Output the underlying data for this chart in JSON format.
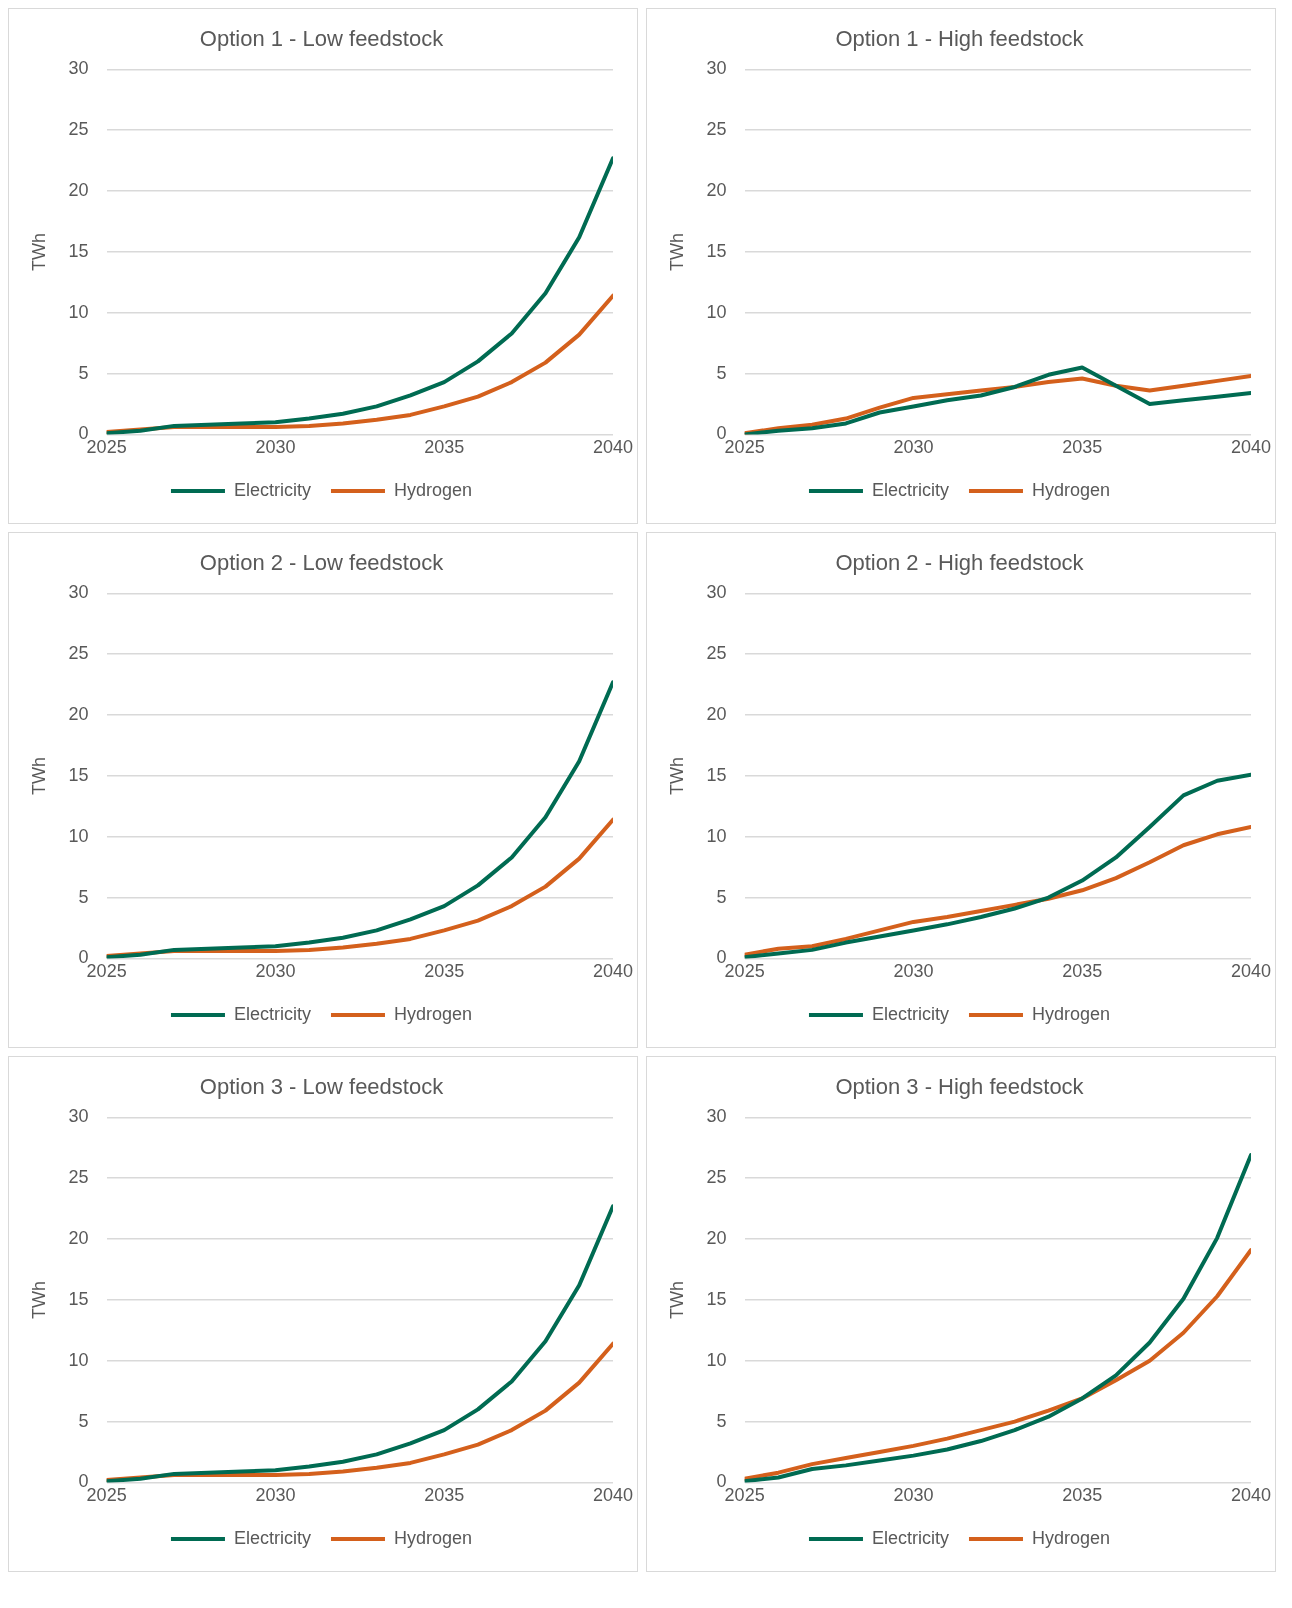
{
  "chart_data": [
    {
      "type": "line",
      "title": "Option 1 - Low feedstock",
      "ylabel": "TWh",
      "x": [
        2025,
        2026,
        2027,
        2028,
        2029,
        2030,
        2031,
        2032,
        2033,
        2034,
        2035,
        2036,
        2037,
        2038,
        2039,
        2040
      ],
      "xlim": [
        2025,
        2040
      ],
      "xticks": [
        2025,
        2030,
        2035,
        2040
      ],
      "ylim": [
        0,
        30
      ],
      "yticks": [
        0,
        5,
        10,
        15,
        20,
        25,
        30
      ],
      "grid": "y",
      "legend": "bottom",
      "marker": "none",
      "line_style": "solid",
      "series": [
        {
          "name": "Electricity",
          "color": "#006b52",
          "values": [
            0.1,
            0.3,
            0.7,
            0.8,
            0.9,
            1.0,
            1.3,
            1.7,
            2.3,
            3.2,
            4.3,
            6.0,
            8.3,
            11.6,
            16.2,
            22.7
          ]
        },
        {
          "name": "Hydrogen",
          "color": "#d4601c",
          "values": [
            0.2,
            0.4,
            0.6,
            0.6,
            0.6,
            0.6,
            0.7,
            0.9,
            1.2,
            1.6,
            2.3,
            3.1,
            4.3,
            5.9,
            8.2,
            11.4
          ]
        }
      ]
    },
    {
      "type": "line",
      "title": "Option 1 - High feedstock",
      "ylabel": "TWh",
      "x": [
        2025,
        2026,
        2027,
        2028,
        2029,
        2030,
        2031,
        2032,
        2033,
        2034,
        2035,
        2036,
        2037,
        2038,
        2039,
        2040
      ],
      "xlim": [
        2025,
        2040
      ],
      "xticks": [
        2025,
        2030,
        2035,
        2040
      ],
      "ylim": [
        0,
        30
      ],
      "yticks": [
        0,
        5,
        10,
        15,
        20,
        25,
        30
      ],
      "grid": "y",
      "legend": "bottom",
      "marker": "none",
      "line_style": "solid",
      "series": [
        {
          "name": "Electricity",
          "color": "#006b52",
          "values": [
            0.0,
            0.3,
            0.5,
            0.9,
            1.8,
            2.3,
            2.8,
            3.2,
            3.9,
            4.9,
            5.5,
            4.0,
            2.5,
            2.8,
            3.1,
            3.4
          ]
        },
        {
          "name": "Hydrogen",
          "color": "#d4601c",
          "values": [
            0.1,
            0.5,
            0.8,
            1.3,
            2.2,
            3.0,
            3.3,
            3.6,
            3.9,
            4.3,
            4.6,
            4.0,
            3.6,
            4.0,
            4.4,
            4.8
          ]
        }
      ]
    },
    {
      "type": "line",
      "title": "Option 2 - Low feedstock",
      "ylabel": "TWh",
      "x": [
        2025,
        2026,
        2027,
        2028,
        2029,
        2030,
        2031,
        2032,
        2033,
        2034,
        2035,
        2036,
        2037,
        2038,
        2039,
        2040
      ],
      "xlim": [
        2025,
        2040
      ],
      "xticks": [
        2025,
        2030,
        2035,
        2040
      ],
      "ylim": [
        0,
        30
      ],
      "yticks": [
        0,
        5,
        10,
        15,
        20,
        25,
        30
      ],
      "grid": "y",
      "legend": "bottom",
      "marker": "none",
      "line_style": "solid",
      "series": [
        {
          "name": "Electricity",
          "color": "#006b52",
          "values": [
            0.1,
            0.3,
            0.7,
            0.8,
            0.9,
            1.0,
            1.3,
            1.7,
            2.3,
            3.2,
            4.3,
            6.0,
            8.3,
            11.6,
            16.2,
            22.7
          ]
        },
        {
          "name": "Hydrogen",
          "color": "#d4601c",
          "values": [
            0.2,
            0.4,
            0.6,
            0.6,
            0.6,
            0.6,
            0.7,
            0.9,
            1.2,
            1.6,
            2.3,
            3.1,
            4.3,
            5.9,
            8.2,
            11.4
          ]
        }
      ]
    },
    {
      "type": "line",
      "title": "Option 2 - High feedstock",
      "ylabel": "TWh",
      "x": [
        2025,
        2026,
        2027,
        2028,
        2029,
        2030,
        2031,
        2032,
        2033,
        2034,
        2035,
        2036,
        2037,
        2038,
        2039,
        2040
      ],
      "xlim": [
        2025,
        2040
      ],
      "xticks": [
        2025,
        2030,
        2035,
        2040
      ],
      "ylim": [
        0,
        30
      ],
      "yticks": [
        0,
        5,
        10,
        15,
        20,
        25,
        30
      ],
      "grid": "y",
      "legend": "bottom",
      "marker": "none",
      "line_style": "solid",
      "series": [
        {
          "name": "Electricity",
          "color": "#006b52",
          "values": [
            0.1,
            0.4,
            0.7,
            1.3,
            1.8,
            2.3,
            2.8,
            3.4,
            4.1,
            5.0,
            6.4,
            8.3,
            10.8,
            13.4,
            14.6,
            15.1
          ]
        },
        {
          "name": "Hydrogen",
          "color": "#d4601c",
          "values": [
            0.3,
            0.8,
            1.0,
            1.6,
            2.3,
            3.0,
            3.4,
            3.9,
            4.4,
            4.9,
            5.6,
            6.6,
            7.9,
            9.3,
            10.2,
            10.8
          ]
        }
      ]
    },
    {
      "type": "line",
      "title": "Option 3 - Low feedstock",
      "ylabel": "TWh",
      "x": [
        2025,
        2026,
        2027,
        2028,
        2029,
        2030,
        2031,
        2032,
        2033,
        2034,
        2035,
        2036,
        2037,
        2038,
        2039,
        2040
      ],
      "xlim": [
        2025,
        2040
      ],
      "xticks": [
        2025,
        2030,
        2035,
        2040
      ],
      "ylim": [
        0,
        30
      ],
      "yticks": [
        0,
        5,
        10,
        15,
        20,
        25,
        30
      ],
      "grid": "y",
      "legend": "bottom",
      "marker": "none",
      "line_style": "solid",
      "series": [
        {
          "name": "Electricity",
          "color": "#006b52",
          "values": [
            0.1,
            0.3,
            0.7,
            0.8,
            0.9,
            1.0,
            1.3,
            1.7,
            2.3,
            3.2,
            4.3,
            6.0,
            8.3,
            11.6,
            16.2,
            22.7
          ]
        },
        {
          "name": "Hydrogen",
          "color": "#d4601c",
          "values": [
            0.2,
            0.4,
            0.6,
            0.6,
            0.6,
            0.6,
            0.7,
            0.9,
            1.2,
            1.6,
            2.3,
            3.1,
            4.3,
            5.9,
            8.2,
            11.4
          ]
        }
      ]
    },
    {
      "type": "line",
      "title": "Option 3 - High feedstock",
      "ylabel": "TWh",
      "x": [
        2025,
        2026,
        2027,
        2028,
        2029,
        2030,
        2031,
        2032,
        2033,
        2034,
        2035,
        2036,
        2037,
        2038,
        2039,
        2040
      ],
      "xlim": [
        2025,
        2040
      ],
      "xticks": [
        2025,
        2030,
        2035,
        2040
      ],
      "ylim": [
        0,
        30
      ],
      "yticks": [
        0,
        5,
        10,
        15,
        20,
        25,
        30
      ],
      "grid": "y",
      "legend": "bottom",
      "marker": "none",
      "line_style": "solid",
      "series": [
        {
          "name": "Electricity",
          "color": "#006b52",
          "values": [
            0.1,
            0.4,
            1.1,
            1.4,
            1.8,
            2.2,
            2.7,
            3.4,
            4.3,
            5.4,
            6.9,
            8.8,
            11.5,
            15.1,
            20.1,
            26.9
          ]
        },
        {
          "name": "Hydrogen",
          "color": "#d4601c",
          "values": [
            0.3,
            0.8,
            1.5,
            2.0,
            2.5,
            3.0,
            3.6,
            4.3,
            5.0,
            5.9,
            6.9,
            8.4,
            10.0,
            12.3,
            15.3,
            19.1
          ]
        }
      ]
    }
  ]
}
